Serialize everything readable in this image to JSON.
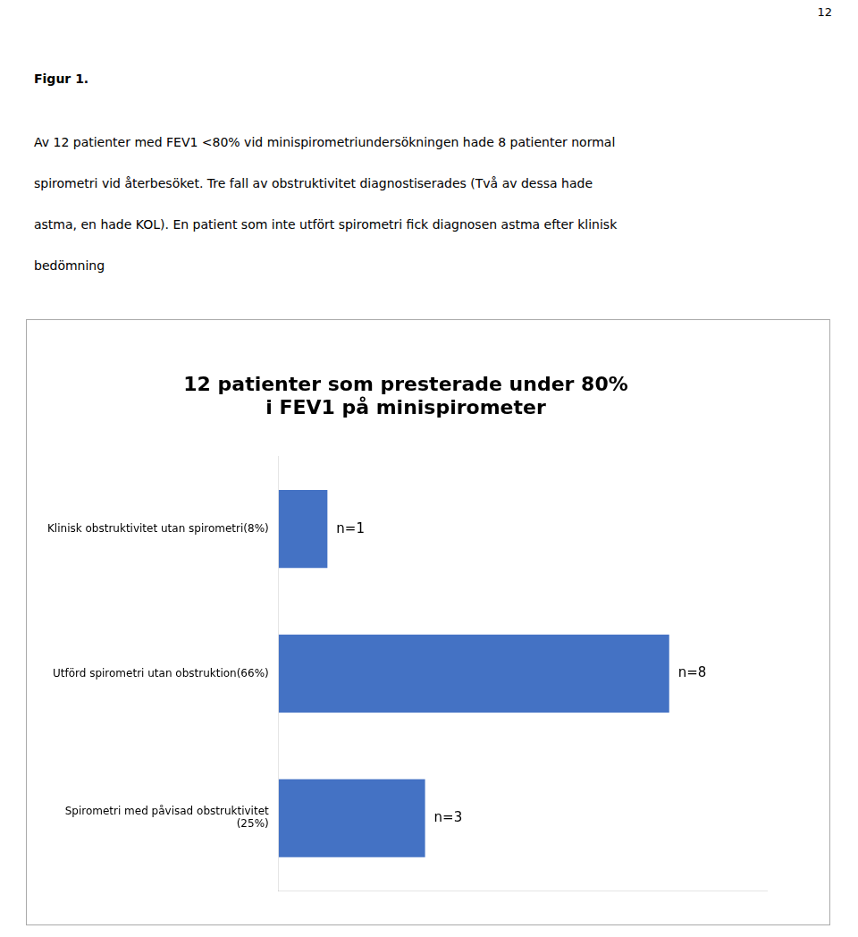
{
  "chart_data": {
    "type": "bar",
    "orientation": "horizontal",
    "title": "12 patienter som presterade under 80%\ni FEV1 på minispirometer",
    "categories": [
      "Klinisk obstruktivitet utan spirometri(8%)",
      "Utförd spirometri utan obstruktion(66%)",
      "Spirometri med påvisad obstruktivitet\n(25%)"
    ],
    "values": [
      1,
      8,
      3
    ],
    "value_labels": [
      "n=1",
      "n=8",
      "n=3"
    ],
    "data_labels": true,
    "color": "#4472C4",
    "xlim": [
      0,
      10
    ],
    "grid": false,
    "tick_labels": "y",
    "annotations": [
      "12",
      "Figur 1.",
      "Av 12 patienter med FEV1 <80% vid minispirometriundersökningen hade 8 patienter normal",
      "spirometri vid återbesöket.  Tre fall av obstruktivitet diagnostiserades (Två av dessa hade",
      "astma, en hade KOL). En patient som inte utfört spirometri fick diagnosen astma efter klinisk",
      "bedömning"
    ]
  }
}
